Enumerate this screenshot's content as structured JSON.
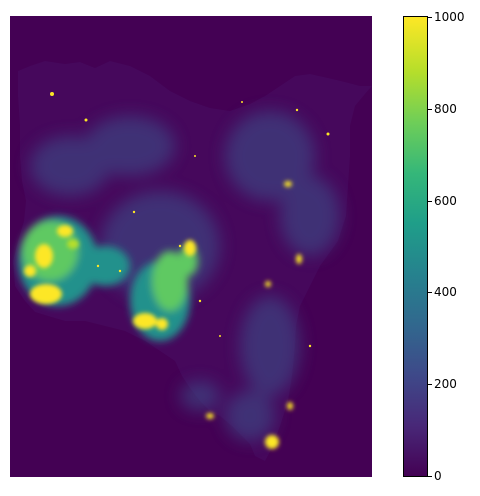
{
  "map": {
    "background_color": "#440154",
    "palette": {
      "land_low": "#46085c",
      "land_mid": "#3b528b",
      "teal": "#21918c",
      "green": "#5ec962",
      "yellow": "#fde725"
    }
  },
  "colorbar": {
    "colormap": "viridis",
    "min": 0,
    "max": 1000,
    "ticks": [
      {
        "value": 0,
        "label": "0"
      },
      {
        "value": 200,
        "label": "200"
      },
      {
        "value": 400,
        "label": "400"
      },
      {
        "value": 600,
        "label": "600"
      },
      {
        "value": 800,
        "label": "800"
      },
      {
        "value": 1000,
        "label": "1000"
      }
    ]
  }
}
